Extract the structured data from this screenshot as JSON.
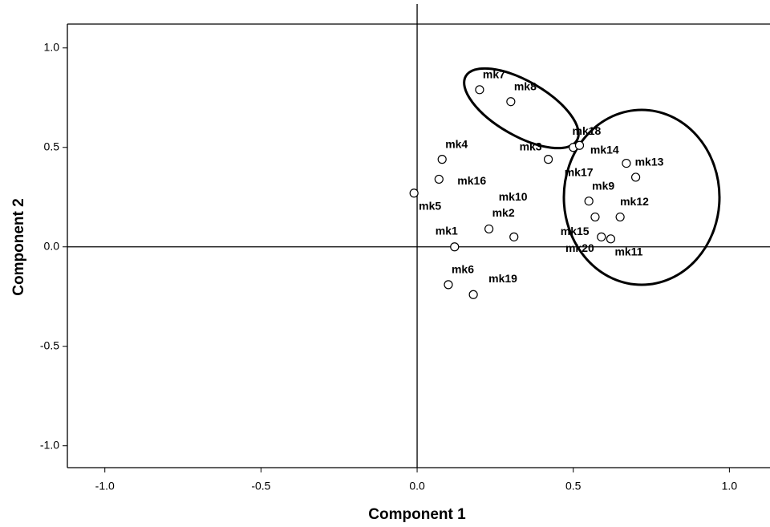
{
  "chart_data": {
    "type": "scatter",
    "x_label": "Component 1",
    "y_label": "Component 2",
    "labels": [
      "mk1",
      "mk2",
      "mk3",
      "mk4",
      "mk5",
      "mk6",
      "mk7",
      "mk8",
      "mk9",
      "mk10",
      "mk11",
      "mk12",
      "mk13",
      "mk14",
      "mk15",
      "mk16",
      "mk17",
      "mk18",
      "mk19",
      "mk20"
    ],
    "x": [
      0.12,
      0.23,
      0.42,
      0.08,
      -0.01,
      0.1,
      0.2,
      0.3,
      0.55,
      0.31,
      0.62,
      0.65,
      0.7,
      0.67,
      0.59,
      0.07,
      0.5,
      0.52,
      0.18,
      0.57
    ],
    "y": [
      0.0,
      0.09,
      0.44,
      0.44,
      0.27,
      -0.19,
      0.79,
      0.73,
      0.23,
      0.05,
      0.04,
      0.15,
      0.35,
      0.42,
      0.05,
      0.34,
      0.5,
      0.51,
      -0.24,
      0.15
    ],
    "xlim": [
      -1.12,
      1.13
    ],
    "ylim": [
      -1.11,
      1.12
    ],
    "xticks": [
      {
        "value": -1,
        "label": "-1.0"
      },
      {
        "value": -0.5,
        "label": "-0.5"
      },
      {
        "value": 0,
        "label": "0.0"
      },
      {
        "value": 0.5,
        "label": "0.5"
      },
      {
        "value": 1,
        "label": "1.0"
      }
    ],
    "yticks": [
      {
        "value": -1,
        "label": "-1.0"
      },
      {
        "value": -0.5,
        "label": "-0.5"
      },
      {
        "value": 0,
        "label": "0.0"
      },
      {
        "value": 0.5,
        "label": "0.5"
      },
      {
        "value": 1,
        "label": "1.0"
      }
    ],
    "color": "#000000"
  }
}
